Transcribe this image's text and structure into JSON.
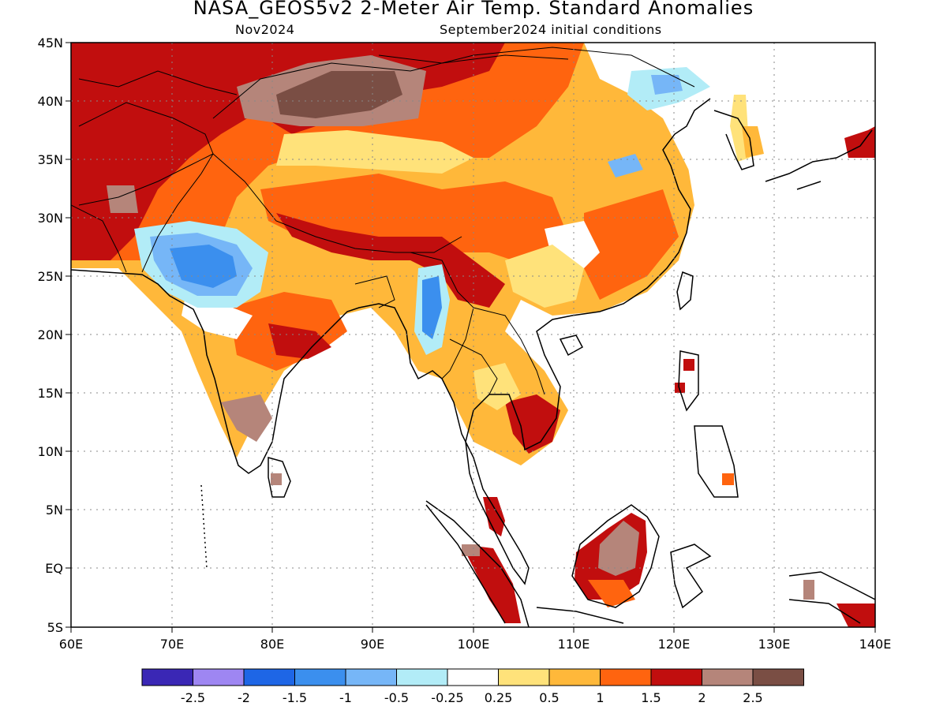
{
  "title": "NASA_GEOS5v2 2-Meter Air Temp. Standard Anomalies",
  "subtitle_left": "Nov2024",
  "subtitle_right": "September2024 initial conditions",
  "axes": {
    "lon_labels": [
      "60E",
      "70E",
      "80E",
      "90E",
      "100E",
      "110E",
      "120E",
      "130E",
      "140E"
    ],
    "lat_labels": [
      "45N",
      "40N",
      "35N",
      "30N",
      "25N",
      "20N",
      "15N",
      "10N",
      "5N",
      "EQ",
      "5S"
    ],
    "lon_range": [
      60,
      140
    ],
    "lat_range": [
      -5,
      45
    ],
    "grid": "dotted, every 10° lon and 5° lat"
  },
  "colorbar": {
    "labels": [
      "-2.5",
      "-2",
      "-1.5",
      "-1",
      "-0.5",
      "-0.25",
      "0.25",
      "0.5",
      "1",
      "1.5",
      "2",
      "2.5"
    ],
    "colors": [
      "#3a27b5",
      "#9e86f2",
      "#1e66e6",
      "#3b8fee",
      "#76b6f7",
      "#b2ecf7",
      "#ffffff",
      "#ffe27a",
      "#ffb83a",
      "#ff640f",
      "#c10e0e",
      "#b5857a",
      "#7a4e44"
    ]
  },
  "colors": {
    "land_outline": "#000000",
    "frame": "#000000"
  }
}
